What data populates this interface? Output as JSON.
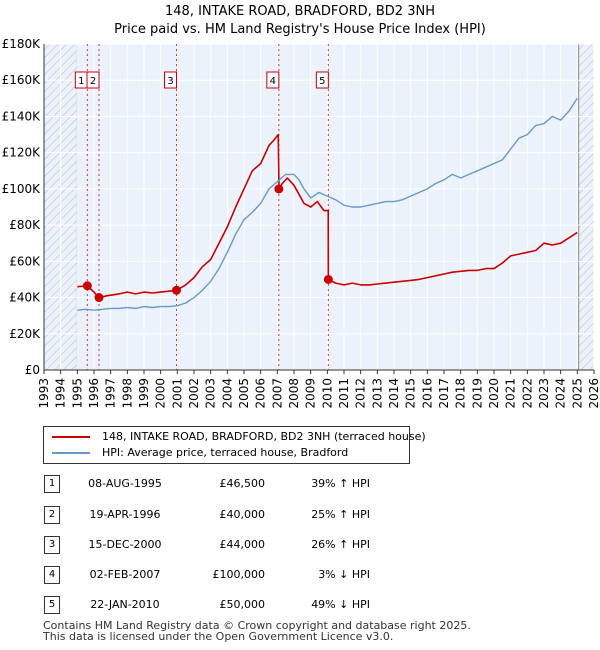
{
  "title_line1": "148, INTAKE ROAD, BRADFORD, BD2 3NH",
  "title_line2": "Price paid vs. HM Land Registry's House Price Index (HPI)",
  "colors": {
    "red": "#cc0000",
    "blue": "#6699cc",
    "bg": "#ebf2fb",
    "hatch": "#bbbbbb",
    "grid": "#ffffff",
    "marker_line": "#dd3333"
  },
  "chart_data": {
    "type": "line",
    "title": "148, INTAKE ROAD, BRADFORD, BD2 3NH — Price paid vs. HM Land Registry's House Price Index (HPI)",
    "xlim": [
      1993,
      2026
    ],
    "ylim": [
      0,
      180000
    ],
    "y_ticks": [
      0,
      20000,
      40000,
      60000,
      80000,
      100000,
      120000,
      140000,
      160000,
      180000
    ],
    "y_tick_labels": [
      "£0",
      "£20K",
      "£40K",
      "£60K",
      "£80K",
      "£100K",
      "£120K",
      "£140K",
      "£160K",
      "£180K"
    ],
    "x_ticks": [
      1993,
      1994,
      1995,
      1996,
      1997,
      1998,
      1999,
      2000,
      2001,
      2002,
      2003,
      2004,
      2005,
      2006,
      2007,
      2008,
      2009,
      2010,
      2011,
      2012,
      2013,
      2014,
      2015,
      2016,
      2017,
      2018,
      2019,
      2020,
      2021,
      2022,
      2023,
      2024,
      2025,
      2026
    ],
    "hatched_before": 1995.0,
    "hatched_after": 2025.08,
    "series": [
      {
        "name": "148, INTAKE ROAD, BRADFORD, BD2 3NH (terraced house)",
        "color": "#cc0000",
        "x": [
          1995.0,
          1995.6,
          1996.0,
          1996.3,
          1996.8,
          1997.5,
          1998.0,
          1998.5,
          1999.0,
          1999.5,
          2000.0,
          2000.5,
          2000.95,
          2001.5,
          2002.0,
          2002.5,
          2003.0,
          2003.5,
          2004.0,
          2004.5,
          2005.0,
          2005.5,
          2006.0,
          2006.5,
          2006.8,
          2007.05,
          2007.1,
          2007.3,
          2007.6,
          2008.0,
          2008.3,
          2008.6,
          2009.0,
          2009.4,
          2009.8,
          2010.05,
          2010.06,
          2010.5,
          2011.0,
          2011.5,
          2012.0,
          2012.5,
          2013.0,
          2013.5,
          2014.0,
          2014.5,
          2015.0,
          2015.5,
          2016.0,
          2016.5,
          2017.0,
          2017.5,
          2018.0,
          2018.5,
          2019.0,
          2019.5,
          2020.0,
          2020.5,
          2021.0,
          2021.5,
          2022.0,
          2022.5,
          2023.0,
          2023.5,
          2024.0,
          2024.5,
          2025.0
        ],
        "values": [
          46000,
          46500,
          43000,
          40000,
          41000,
          42000,
          43000,
          42000,
          43000,
          42500,
          43000,
          43500,
          44000,
          47000,
          51000,
          57000,
          61000,
          70000,
          79000,
          90000,
          100000,
          110000,
          114000,
          124000,
          127000,
          130000,
          100000,
          103000,
          106000,
          102000,
          97000,
          92000,
          90000,
          93000,
          88000,
          88000,
          50000,
          48000,
          47000,
          48000,
          47000,
          47000,
          47500,
          48000,
          48500,
          49000,
          49500,
          50000,
          51000,
          52000,
          53000,
          54000,
          54500,
          55000,
          55000,
          56000,
          56000,
          59000,
          63000,
          64000,
          65000,
          66000,
          70000,
          69000,
          70000,
          73000,
          76000
        ]
      },
      {
        "name": "HPI: Average price, terraced house, Bradford",
        "color": "#6699cc",
        "x": [
          1995.0,
          1995.5,
          1996.0,
          1996.5,
          1997.0,
          1997.5,
          1998.0,
          1998.5,
          1999.0,
          1999.5,
          2000.0,
          2000.5,
          2001.0,
          2001.5,
          2002.0,
          2002.5,
          2003.0,
          2003.5,
          2004.0,
          2004.5,
          2005.0,
          2005.5,
          2006.0,
          2006.5,
          2007.0,
          2007.5,
          2008.0,
          2008.3,
          2008.6,
          2009.0,
          2009.5,
          2010.0,
          2010.5,
          2011.0,
          2011.5,
          2012.0,
          2012.5,
          2013.0,
          2013.5,
          2014.0,
          2014.5,
          2015.0,
          2015.5,
          2016.0,
          2016.5,
          2017.0,
          2017.5,
          2018.0,
          2018.5,
          2019.0,
          2019.5,
          2020.0,
          2020.5,
          2021.0,
          2021.5,
          2022.0,
          2022.5,
          2023.0,
          2023.5,
          2024.0,
          2024.5,
          2025.0
        ],
        "values": [
          33000,
          33500,
          33000,
          33500,
          34000,
          34000,
          34500,
          34000,
          35000,
          34500,
          35000,
          35000,
          35500,
          37000,
          40000,
          44000,
          49000,
          56000,
          65000,
          75000,
          83000,
          87000,
          92000,
          100000,
          104000,
          108000,
          108000,
          105000,
          100000,
          95000,
          98000,
          96000,
          94000,
          91000,
          90000,
          90000,
          91000,
          92000,
          93000,
          93000,
          94000,
          96000,
          98000,
          100000,
          103000,
          105000,
          108000,
          106000,
          108000,
          110000,
          112000,
          114000,
          116000,
          122000,
          128000,
          130000,
          135000,
          136000,
          140000,
          138000,
          143000,
          150000
        ]
      }
    ],
    "sales": [
      {
        "num": "1",
        "date": "08-AUG-1995",
        "x": 1995.6,
        "price": 46500,
        "price_label": "£46,500",
        "hpi": "39% ↑ HPI"
      },
      {
        "num": "2",
        "date": "19-APR-1996",
        "x": 1996.3,
        "price": 40000,
        "price_label": "£40,000",
        "hpi": "25% ↑ HPI"
      },
      {
        "num": "3",
        "date": "15-DEC-2000",
        "x": 2000.95,
        "price": 44000,
        "price_label": "£44,000",
        "hpi": "26% ↑ HPI"
      },
      {
        "num": "4",
        "date": "02-FEB-2007",
        "x": 2007.09,
        "price": 100000,
        "price_label": "£100,000",
        "hpi": "3% ↓ HPI"
      },
      {
        "num": "5",
        "date": "22-JAN-2010",
        "x": 2010.06,
        "price": 50000,
        "price_label": "£50,000",
        "hpi": "49% ↓ HPI"
      }
    ]
  },
  "legend": {
    "red_label": "148, INTAKE ROAD, BRADFORD, BD2 3NH (terraced house)",
    "blue_label": "HPI: Average price, terraced house, Bradford"
  },
  "footer": {
    "line1": "Contains HM Land Registry data © Crown copyright and database right 2025.",
    "line2": "This data is licensed under the Open Government Licence v3.0."
  }
}
